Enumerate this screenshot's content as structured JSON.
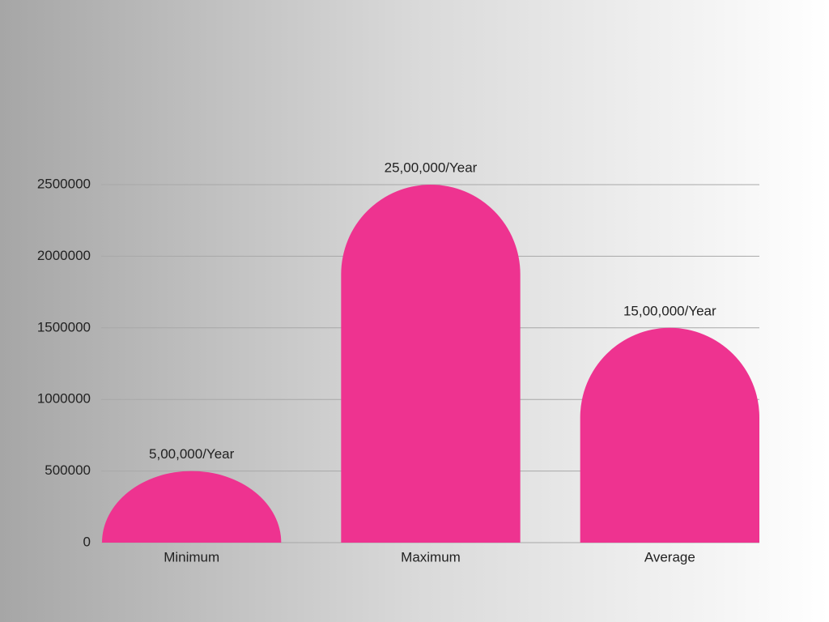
{
  "chart_data": {
    "type": "bar",
    "categories": [
      "Minimum",
      "Maximum",
      "Average"
    ],
    "values": [
      500000,
      2500000,
      1500000
    ],
    "value_labels": [
      "5,00,000/Year",
      "25,00,000/Year",
      "15,00,000/Year"
    ],
    "color": "#ee3390",
    "ylim": [
      0,
      2500000
    ],
    "yticks": [
      0,
      500000,
      1000000,
      1500000,
      2000000,
      2500000
    ],
    "grid": true
  }
}
